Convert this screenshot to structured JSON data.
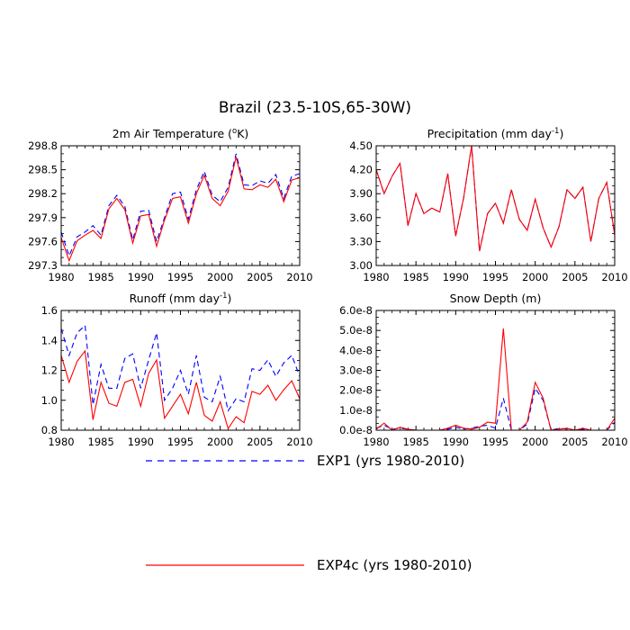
{
  "figure": {
    "title": "Brazil (23.5-10S,65-30W)"
  },
  "legend": [
    {
      "label": "EXP1 (yrs 1980-2010)",
      "color": "#0000ff",
      "style": "dashed"
    },
    {
      "label": "EXP4c (yrs 1980-2010)",
      "color": "#ff0000",
      "style": "solid"
    }
  ],
  "chart_data": [
    {
      "type": "line",
      "title_text": "2m Air Temperature (",
      "title_sup": "o",
      "title_after": "K)",
      "x": [
        1980,
        1981,
        1982,
        1983,
        1984,
        1985,
        1986,
        1987,
        1988,
        1989,
        1990,
        1991,
        1992,
        1993,
        1994,
        1995,
        1996,
        1997,
        1998,
        1999,
        2000,
        2001,
        2002,
        2003,
        2004,
        2005,
        2006,
        2007,
        2008,
        2009,
        2010
      ],
      "xlim": [
        1980,
        2010
      ],
      "xticks": [
        1980,
        1985,
        1990,
        1995,
        2000,
        2005,
        2010
      ],
      "xtick_labels": [
        "1980",
        "1985",
        "1990",
        "1995",
        "2000",
        "2005",
        "2010"
      ],
      "ylim": [
        297.3,
        298.8
      ],
      "yticks": [
        297.3,
        297.6,
        297.9,
        298.2,
        298.5,
        298.8
      ],
      "ytick_labels": [
        "297.3",
        "297.6",
        "297.9",
        "298.2",
        "298.5",
        "298.8"
      ],
      "series": [
        {
          "name": "EXP1 (yrs 1980-2010)",
          "values": [
            297.72,
            297.42,
            297.66,
            297.72,
            297.8,
            297.68,
            298.05,
            298.18,
            298.04,
            297.62,
            297.98,
            297.99,
            297.6,
            297.9,
            298.2,
            298.22,
            297.88,
            298.25,
            298.48,
            298.18,
            298.1,
            298.28,
            298.7,
            298.31,
            298.3,
            298.36,
            298.33,
            298.44,
            298.14,
            298.42,
            298.45
          ]
        },
        {
          "name": "EXP4c (yrs 1980-2010)",
          "values": [
            297.65,
            297.36,
            297.61,
            297.68,
            297.74,
            297.64,
            298.01,
            298.14,
            298.0,
            297.58,
            297.92,
            297.94,
            297.54,
            297.87,
            298.14,
            298.16,
            297.83,
            298.2,
            298.43,
            298.14,
            298.05,
            298.23,
            298.66,
            298.26,
            298.25,
            298.31,
            298.28,
            298.38,
            298.1,
            298.37,
            298.4
          ]
        }
      ]
    },
    {
      "type": "line",
      "title_text": "Precipitation (mm day",
      "title_sup": "-1",
      "title_after": ")",
      "x": [
        1980,
        1981,
        1982,
        1983,
        1984,
        1985,
        1986,
        1987,
        1988,
        1989,
        1990,
        1991,
        1992,
        1993,
        1994,
        1995,
        1996,
        1997,
        1998,
        1999,
        2000,
        2001,
        2002,
        2003,
        2004,
        2005,
        2006,
        2007,
        2008,
        2009,
        2010
      ],
      "xlim": [
        1980,
        2010
      ],
      "xticks": [
        1980,
        1985,
        1990,
        1995,
        2000,
        2005,
        2010
      ],
      "xtick_labels": [
        "1980",
        "1985",
        "1990",
        "1995",
        "2000",
        "2005",
        "2010"
      ],
      "ylim": [
        3.0,
        4.5
      ],
      "yticks": [
        3.0,
        3.3,
        3.6,
        3.9,
        4.2,
        4.5
      ],
      "ytick_labels": [
        "3.00",
        "3.30",
        "3.60",
        "3.90",
        "4.20",
        "4.50"
      ],
      "series": [
        {
          "name": "EXP1 (yrs 1980-2010)",
          "values": [
            4.2,
            3.9,
            4.12,
            4.28,
            3.5,
            3.9,
            3.65,
            3.72,
            3.67,
            4.15,
            3.37,
            3.85,
            4.5,
            3.18,
            3.65,
            3.78,
            3.53,
            3.95,
            3.58,
            3.44,
            3.83,
            3.47,
            3.23,
            3.49,
            3.95,
            3.84,
            3.98,
            3.3,
            3.84,
            4.04,
            3.38
          ]
        },
        {
          "name": "EXP4c (yrs 1980-2010)",
          "values": [
            4.2,
            3.9,
            4.12,
            4.28,
            3.5,
            3.9,
            3.65,
            3.72,
            3.67,
            4.15,
            3.37,
            3.85,
            4.5,
            3.18,
            3.65,
            3.78,
            3.53,
            3.95,
            3.58,
            3.44,
            3.83,
            3.47,
            3.23,
            3.49,
            3.95,
            3.84,
            3.98,
            3.3,
            3.84,
            4.04,
            3.38
          ]
        }
      ]
    },
    {
      "type": "line",
      "title_text": "Runoff (mm day",
      "title_sup": "-1",
      "title_after": ")",
      "x": [
        1980,
        1981,
        1982,
        1983,
        1984,
        1985,
        1986,
        1987,
        1988,
        1989,
        1990,
        1991,
        1992,
        1993,
        1994,
        1995,
        1996,
        1997,
        1998,
        1999,
        2000,
        2001,
        2002,
        2003,
        2004,
        2005,
        2006,
        2007,
        2008,
        2009,
        2010
      ],
      "xlim": [
        1980,
        2010
      ],
      "xticks": [
        1980,
        1985,
        1990,
        1995,
        2000,
        2005,
        2010
      ],
      "xtick_labels": [
        "1980",
        "1985",
        "1990",
        "1995",
        "2000",
        "2005",
        "2010"
      ],
      "ylim": [
        0.8,
        1.6
      ],
      "yticks": [
        0.8,
        1.0,
        1.2,
        1.4,
        1.6
      ],
      "ytick_labels": [
        "0.8",
        "1.0",
        "1.2",
        "1.4",
        "1.6"
      ],
      "series": [
        {
          "name": "EXP1 (yrs 1980-2010)",
          "values": [
            1.48,
            1.3,
            1.45,
            1.5,
            0.97,
            1.24,
            1.08,
            1.08,
            1.28,
            1.31,
            1.08,
            1.27,
            1.45,
            1.0,
            1.08,
            1.2,
            1.04,
            1.3,
            1.02,
            0.99,
            1.16,
            0.93,
            1.01,
            0.99,
            1.21,
            1.2,
            1.27,
            1.16,
            1.25,
            1.3,
            1.16
          ]
        },
        {
          "name": "EXP4c (yrs 1980-2010)",
          "values": [
            1.3,
            1.12,
            1.26,
            1.33,
            0.87,
            1.12,
            0.98,
            0.96,
            1.12,
            1.14,
            0.96,
            1.18,
            1.27,
            0.88,
            0.96,
            1.04,
            0.91,
            1.12,
            0.9,
            0.86,
            0.99,
            0.81,
            0.89,
            0.85,
            1.06,
            1.04,
            1.1,
            1.0,
            1.07,
            1.13,
            1.01
          ]
        }
      ]
    },
    {
      "type": "line",
      "title_text": "Snow Depth (m)",
      "title_sup": "",
      "title_after": "",
      "x": [
        1980,
        1981,
        1982,
        1983,
        1984,
        1985,
        1986,
        1987,
        1988,
        1989,
        1990,
        1991,
        1992,
        1993,
        1994,
        1995,
        1996,
        1997,
        1998,
        1999,
        2000,
        2001,
        2002,
        2003,
        2004,
        2005,
        2006,
        2007,
        2008,
        2009,
        2010
      ],
      "xlim": [
        1980,
        2010
      ],
      "xticks": [
        1980,
        1985,
        1990,
        1995,
        2000,
        2005,
        2010
      ],
      "xtick_labels": [
        "1980",
        "1985",
        "1990",
        "1995",
        "2000",
        "2005",
        "2010"
      ],
      "ylim": [
        0.0,
        6e-08
      ],
      "yticks": [
        0.0,
        1e-08,
        2e-08,
        3e-08,
        4e-08,
        5e-08,
        6e-08
      ],
      "ytick_labels": [
        "0.0e-8",
        "1.0e-8",
        "2.0e-8",
        "3.0e-8",
        "4.0e-8",
        "5.0e-8",
        "6.0e-8"
      ],
      "series": [
        {
          "name": "EXP1 (yrs 1980-2010)",
          "values": [
            1e-09,
            2.5e-09,
            5e-10,
            1e-09,
            5e-10,
            0.0,
            0.0,
            0.0,
            0.0,
            5e-10,
            1.5e-09,
            5e-10,
            1e-09,
            2e-09,
            2.5e-09,
            1e-09,
            1.6e-08,
            0.0,
            0.0,
            3e-09,
            2.1e-08,
            1.5e-08,
            0.0,
            1e-09,
            5e-10,
            0.0,
            5e-10,
            0.0,
            0.0,
            0.0,
            4e-09
          ]
        },
        {
          "name": "EXP4c (yrs 1980-2010)",
          "values": [
            5e-10,
            3.5e-09,
            0.0,
            1.5e-09,
            5e-10,
            0.0,
            0.0,
            0.0,
            0.0,
            1e-09,
            2.5e-09,
            1e-09,
            5e-10,
            1.5e-09,
            4e-09,
            3.5e-09,
            5.1e-08,
            0.0,
            0.0,
            4e-09,
            2.4e-08,
            1.6e-08,
            0.0,
            5e-10,
            1e-09,
            0.0,
            1e-09,
            0.0,
            0.0,
            0.0,
            6e-09
          ]
        }
      ]
    }
  ]
}
